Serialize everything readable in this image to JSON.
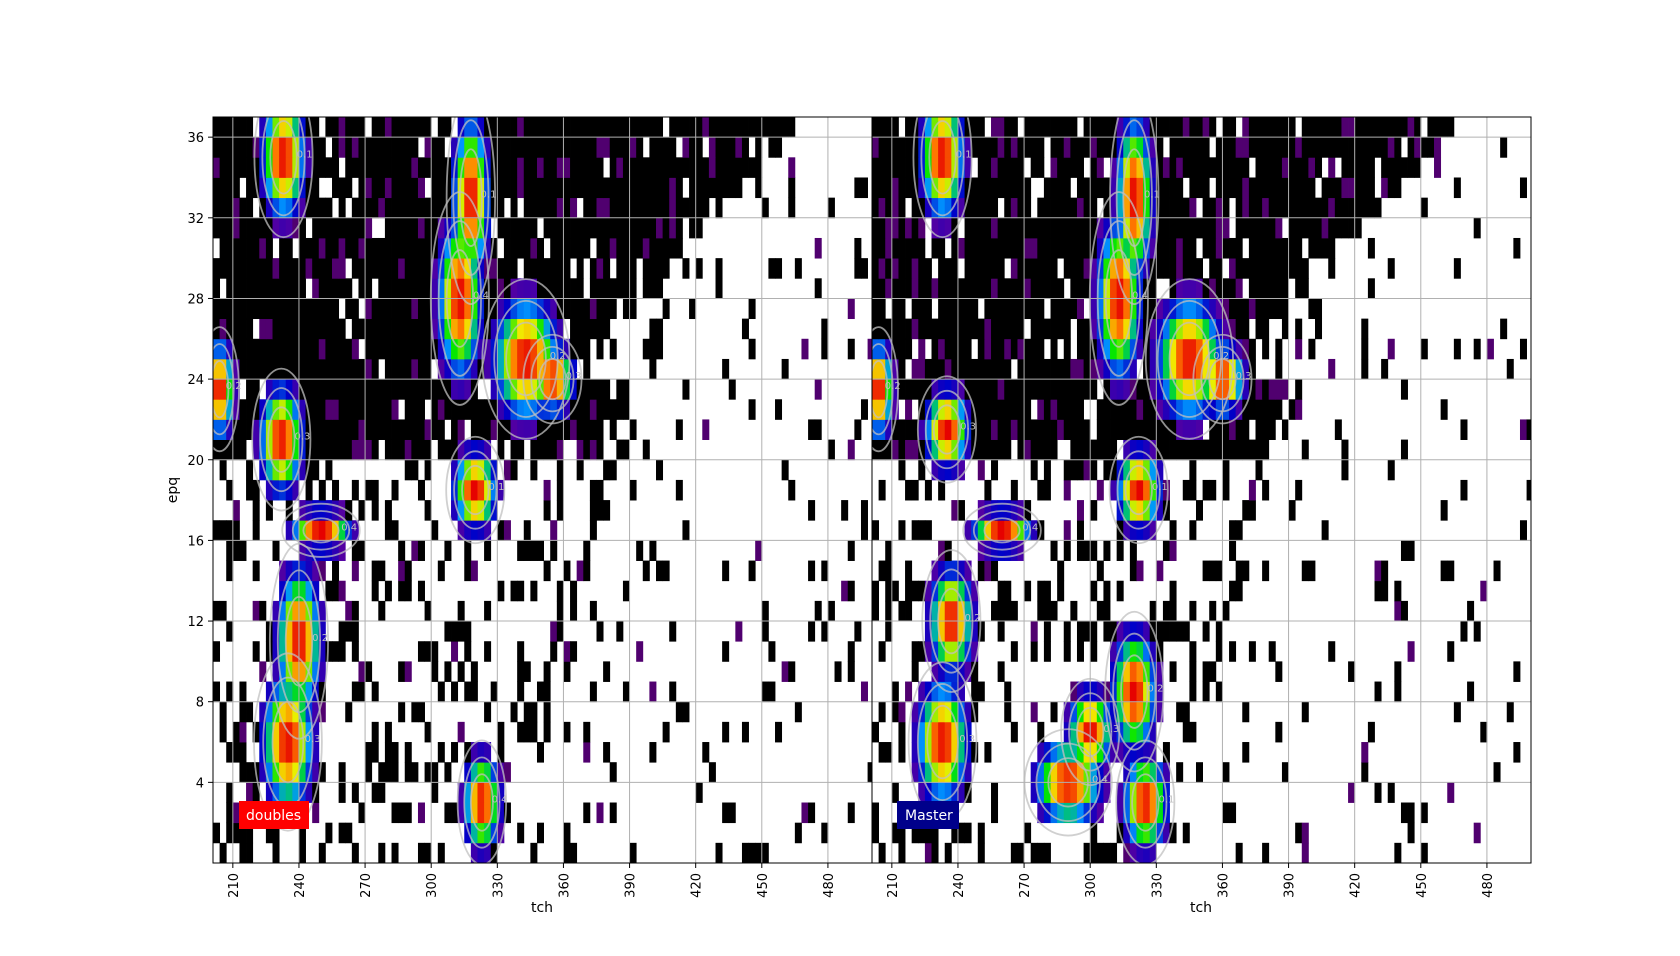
{
  "chart_data": [
    {
      "type": "heatmap",
      "panel_label": "doubles",
      "panel_label_color": "#ff0000",
      "xlabel": "tch",
      "ylabel": "epq",
      "xlim": [
        201,
        500
      ],
      "ylim": [
        0,
        37
      ],
      "xticks": [
        "210",
        "240",
        "270",
        "300",
        "330",
        "360",
        "390",
        "420",
        "450",
        "480"
      ],
      "yticks": [
        "4",
        "8",
        "12",
        "16",
        "20",
        "24",
        "28",
        "32",
        "36"
      ],
      "grid": true,
      "colormap": "gist_ncar",
      "hot_spots": [
        {
          "x": 233,
          "y": 35,
          "sx": 6,
          "sy": 1.8
        },
        {
          "x": 204,
          "y": 23.5,
          "sx": 4,
          "sy": 1.4
        },
        {
          "x": 232,
          "y": 21,
          "sx": 6,
          "sy": 1.6
        },
        {
          "x": 313,
          "y": 28,
          "sx": 6,
          "sy": 2.4
        },
        {
          "x": 318,
          "y": 33,
          "sx": 5,
          "sy": 2.4
        },
        {
          "x": 343,
          "y": 25,
          "sx": 9,
          "sy": 1.8
        },
        {
          "x": 355,
          "y": 24,
          "sx": 6,
          "sy": 1.0
        },
        {
          "x": 250,
          "y": 16.5,
          "sx": 8,
          "sy": 0.6
        },
        {
          "x": 320,
          "y": 18.5,
          "sx": 6,
          "sy": 1.2
        },
        {
          "x": 240,
          "y": 11,
          "sx": 6,
          "sy": 2.2
        },
        {
          "x": 235,
          "y": 6,
          "sx": 7,
          "sy": 2.0
        },
        {
          "x": 323,
          "y": 3,
          "sx": 5,
          "sy": 1.4
        }
      ],
      "contour_labels": [
        "0.1",
        "0.2",
        "0.3",
        "0.4"
      ]
    },
    {
      "type": "heatmap",
      "panel_label": "Master",
      "panel_label_color": "#00008b",
      "xlabel": "tch",
      "ylabel": "",
      "xlim": [
        201,
        500
      ],
      "ylim": [
        0,
        37
      ],
      "xticks": [
        "210",
        "240",
        "270",
        "300",
        "330",
        "360",
        "390",
        "420",
        "450",
        "480"
      ],
      "yticks": [],
      "grid": true,
      "colormap": "gist_ncar",
      "hot_spots": [
        {
          "x": 233,
          "y": 35,
          "sx": 6,
          "sy": 1.8
        },
        {
          "x": 204,
          "y": 23.5,
          "sx": 4,
          "sy": 1.4
        },
        {
          "x": 235,
          "y": 21.5,
          "sx": 6,
          "sy": 1.2
        },
        {
          "x": 313,
          "y": 28,
          "sx": 6,
          "sy": 2.4
        },
        {
          "x": 320,
          "y": 33,
          "sx": 5,
          "sy": 2.4
        },
        {
          "x": 345,
          "y": 25,
          "sx": 9,
          "sy": 1.8
        },
        {
          "x": 360,
          "y": 24,
          "sx": 6,
          "sy": 1.0
        },
        {
          "x": 260,
          "y": 16.5,
          "sx": 8,
          "sy": 0.6
        },
        {
          "x": 322,
          "y": 18.5,
          "sx": 6,
          "sy": 1.2
        },
        {
          "x": 237,
          "y": 12,
          "sx": 6,
          "sy": 1.6
        },
        {
          "x": 233,
          "y": 6,
          "sx": 7,
          "sy": 1.8
        },
        {
          "x": 290,
          "y": 4,
          "sx": 9,
          "sy": 1.2
        },
        {
          "x": 325,
          "y": 3,
          "sx": 6,
          "sy": 1.4
        },
        {
          "x": 320,
          "y": 8.5,
          "sx": 6,
          "sy": 1.8
        },
        {
          "x": 300,
          "y": 6.5,
          "sx": 6,
          "sy": 1.2
        }
      ],
      "contour_labels": [
        "0.1",
        "0.2",
        "0.3",
        "0.4"
      ]
    }
  ]
}
